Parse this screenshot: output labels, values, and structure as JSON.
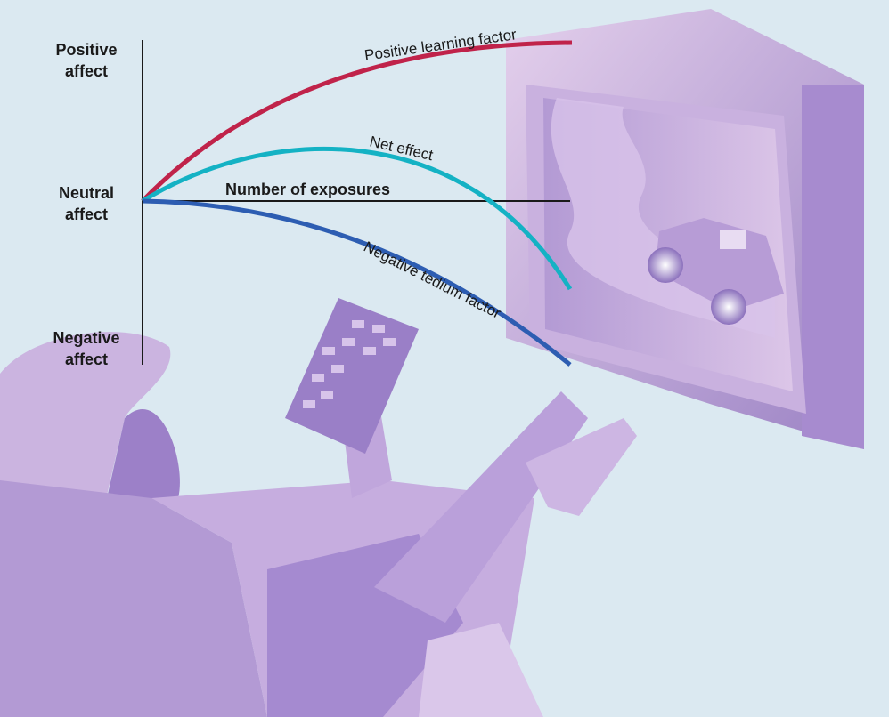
{
  "axes": {
    "y_labels": [
      {
        "lines": [
          "Positive",
          "affect"
        ]
      },
      {
        "lines": [
          "Neutral",
          "affect"
        ]
      },
      {
        "lines": [
          "Negative",
          "affect"
        ]
      }
    ],
    "x_label": "Number of exposures"
  },
  "curves": [
    {
      "label": "Positive learning factor"
    },
    {
      "label": "Net effect"
    },
    {
      "label": "Negative tedium factor"
    }
  ]
}
